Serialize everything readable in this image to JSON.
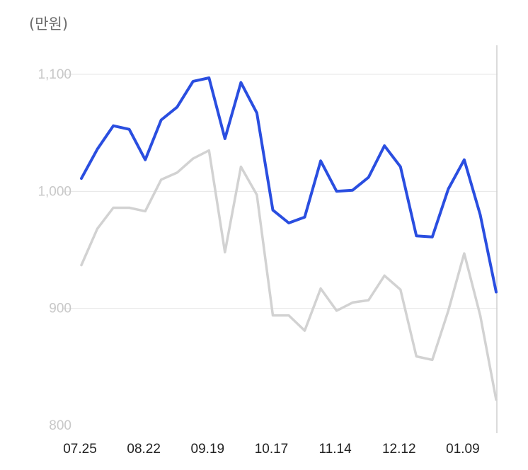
{
  "unit_label": "(만원)",
  "chart_data": {
    "type": "line",
    "title": "",
    "xlabel": "",
    "ylabel": "(만원)",
    "ylim": [
      800,
      1100
    ],
    "yticks": [
      800,
      900,
      1000,
      1100
    ],
    "ytick_labels": [
      "800",
      "900",
      "1,000",
      "1,100"
    ],
    "xtick_labels": [
      "07.25",
      "08.22",
      "09.19",
      "10.17",
      "11.14",
      "12.12",
      "01.09"
    ],
    "xtick_index": [
      0,
      4,
      8,
      12,
      16,
      20,
      24
    ],
    "grid": true,
    "legend": "none",
    "series": [
      {
        "color": "#2a4ee0",
        "values": [
          1011,
          1036,
          1056,
          1053,
          1027,
          1061,
          1072,
          1094,
          1097,
          1045,
          1093,
          1067,
          984,
          973,
          978,
          1026,
          1000,
          1001,
          1012,
          1039,
          1021,
          962,
          961,
          1002,
          1027,
          980,
          914
        ]
      },
      {
        "color": "#d2d2d2",
        "values": [
          937,
          968,
          986,
          986,
          983,
          1010,
          1016,
          1028,
          1035,
          948,
          1021,
          997,
          894,
          894,
          881,
          917,
          898,
          905,
          907,
          928,
          916,
          859,
          856,
          898,
          947,
          894,
          822
        ]
      }
    ]
  }
}
